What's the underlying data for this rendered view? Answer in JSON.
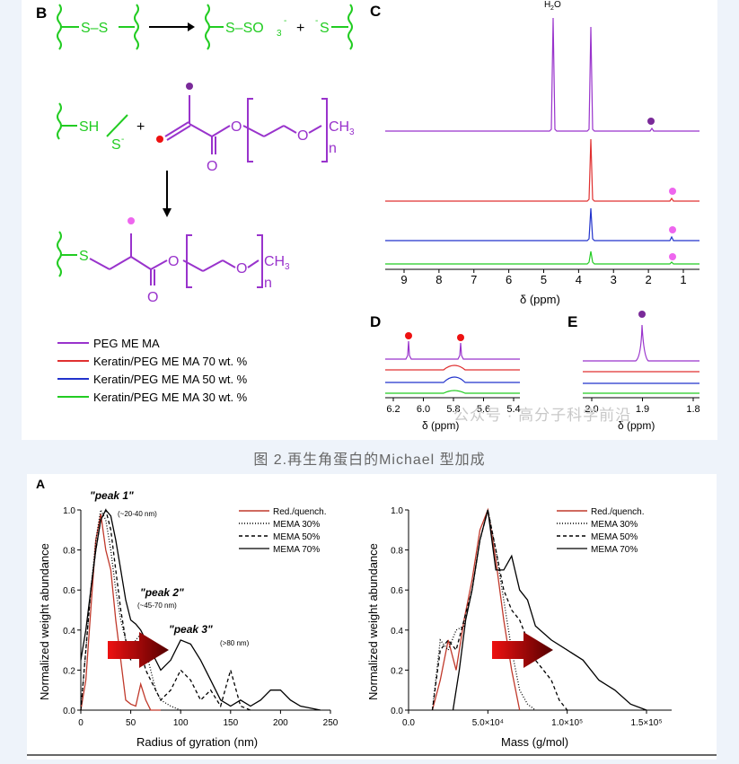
{
  "figure_top": {
    "panel_B": {
      "letter": "B",
      "legend": [
        {
          "label": "PEG ME MA",
          "color": "#9933cc"
        },
        {
          "label": "Keratin/PEG ME MA 70 wt. %",
          "color": "#e03030"
        },
        {
          "label": "Keratin/PEG ME MA 50 wt. %",
          "color": "#2233cc"
        },
        {
          "label": "Keratin/PEG ME MA 30 wt. %",
          "color": "#22cc22"
        }
      ],
      "chem": {
        "ss": "S–S",
        "arrow_top": "→",
        "sulfonate": "S–SO",
        "sub3": "3",
        "sup_minus": "-",
        "plus": "+",
        "thiolate": "S",
        "sh": "SH",
        "s_minus": "S",
        "o": "O",
        "ch3": "CH",
        "sub_3": "3",
        "n": "n",
        "s": "S"
      }
    },
    "panel_C": {
      "letter": "C",
      "water_label": "H",
      "water_sub": "2",
      "water_o": "O",
      "x_ticks": [
        "9",
        "8",
        "7",
        "6",
        "5",
        "4",
        "3",
        "2",
        "1"
      ],
      "x_label": "δ (ppm)",
      "colors": [
        "#9933cc",
        "#e03030",
        "#2233cc",
        "#22cc22"
      ]
    },
    "panel_D": {
      "letter": "D",
      "x_ticks": [
        "6.2",
        "6.0",
        "5.8",
        "5.6",
        "5.4"
      ],
      "x_label": "δ (ppm)"
    },
    "panel_E": {
      "letter": "E",
      "x_ticks": [
        "2.0",
        "1.9",
        "1.8"
      ],
      "x_label": "δ (ppm)"
    }
  },
  "watermark": "公众号 · 高分子科学前沿",
  "caption": "图 2.再生角蛋白的Michael 型加成",
  "figure_bottom": {
    "letter": "A",
    "left_chart": {
      "ylabel": "Normalized weight abundance",
      "xlabel": "Radius of gyration (nm)",
      "x_ticks": [
        "0",
        "50",
        "100",
        "150",
        "200",
        "250"
      ],
      "y_ticks": [
        "0.0",
        "0.2",
        "0.4",
        "0.6",
        "0.8",
        "1.0"
      ],
      "annotations": [
        {
          "text": "\"peak 1\"",
          "sub": "(~20-40 nm)"
        },
        {
          "text": "\"peak 2\"",
          "sub": "(~45-70 nm)"
        },
        {
          "text": "\"peak 3\"",
          "sub": "(>80 nm)"
        }
      ]
    },
    "right_chart": {
      "ylabel": "Normalized weight abundance",
      "xlabel": "Mass (g/mol)",
      "x_ticks": [
        "0.0",
        "5.0×10⁴",
        "1.0×10⁵",
        "1.5×10⁵"
      ],
      "y_ticks": [
        "0.0",
        "0.2",
        "0.4",
        "0.6",
        "0.8",
        "1.0"
      ]
    },
    "legend": [
      "Red./quench.",
      "MEMA 30%",
      "MEMA 50%",
      "MEMA 70%"
    ]
  },
  "chart_data": [
    {
      "type": "line",
      "title": "",
      "xlabel": "Radius of gyration (nm)",
      "ylabel": "Normalized weight abundance",
      "xlim": [
        0,
        250
      ],
      "ylim": [
        0,
        1.0
      ],
      "series": [
        {
          "name": "Red./quench.",
          "x": [
            0,
            5,
            10,
            15,
            20,
            25,
            30,
            35,
            40,
            45,
            50,
            55,
            60,
            65,
            70,
            80
          ],
          "y": [
            0,
            0.15,
            0.5,
            0.85,
            0.98,
            0.8,
            0.7,
            0.45,
            0.25,
            0.05,
            0.03,
            0.02,
            0.13,
            0.05,
            0,
            0
          ]
        },
        {
          "name": "MEMA 30%",
          "x": [
            0,
            5,
            10,
            15,
            20,
            25,
            30,
            35,
            40,
            45,
            50,
            55,
            60,
            65,
            70,
            75,
            80,
            90,
            100
          ],
          "y": [
            0,
            0.3,
            0.6,
            0.85,
            1.0,
            0.95,
            0.8,
            0.6,
            0.45,
            0.35,
            0.3,
            0.35,
            0.38,
            0.3,
            0.2,
            0.1,
            0.05,
            0.02,
            0
          ]
        },
        {
          "name": "MEMA 50%",
          "x": [
            0,
            5,
            10,
            15,
            20,
            25,
            30,
            35,
            40,
            45,
            50,
            55,
            60,
            65,
            70,
            80,
            90,
            100,
            110,
            120,
            130,
            140,
            150,
            160,
            170
          ],
          "y": [
            0,
            0.3,
            0.6,
            0.8,
            0.95,
            1.0,
            0.9,
            0.7,
            0.5,
            0.35,
            0.25,
            0.35,
            0.3,
            0.2,
            0.15,
            0.05,
            0.1,
            0.2,
            0.15,
            0.05,
            0.1,
            0.02,
            0.2,
            0.02,
            0
          ]
        },
        {
          "name": "MEMA 70%",
          "x": [
            0,
            5,
            10,
            15,
            20,
            25,
            30,
            35,
            40,
            45,
            50,
            55,
            60,
            65,
            70,
            80,
            90,
            100,
            110,
            120,
            130,
            140,
            150,
            160,
            170,
            180,
            190,
            200,
            210,
            220,
            230,
            240
          ],
          "y": [
            0.25,
            0.4,
            0.6,
            0.8,
            0.95,
            1.0,
            0.97,
            0.85,
            0.7,
            0.55,
            0.45,
            0.43,
            0.4,
            0.35,
            0.3,
            0.2,
            0.25,
            0.35,
            0.33,
            0.25,
            0.15,
            0.05,
            0.02,
            0.05,
            0.02,
            0.05,
            0.1,
            0.1,
            0.05,
            0.02,
            0.01,
            0
          ]
        }
      ]
    },
    {
      "type": "line",
      "title": "",
      "xlabel": "Mass (g/mol)",
      "ylabel": "Normalized weight abundance",
      "xlim": [
        0,
        150000
      ],
      "ylim": [
        0,
        1.0
      ],
      "series": [
        {
          "name": "Red./quench.",
          "x": [
            15000,
            20000,
            25000,
            30000,
            35000,
            40000,
            45000,
            50000,
            55000,
            60000,
            65000,
            70000
          ],
          "y": [
            0,
            0.15,
            0.35,
            0.2,
            0.45,
            0.65,
            0.9,
            1.0,
            0.75,
            0.45,
            0.2,
            0
          ]
        },
        {
          "name": "MEMA 30%",
          "x": [
            15000,
            20000,
            25000,
            30000,
            35000,
            40000,
            45000,
            50000,
            55000,
            60000,
            65000,
            70000,
            75000,
            80000
          ],
          "y": [
            0,
            0.35,
            0.3,
            0.4,
            0.42,
            0.6,
            0.85,
            1.0,
            0.8,
            0.55,
            0.3,
            0.1,
            0.03,
            0
          ]
        },
        {
          "name": "MEMA 50%",
          "x": [
            15000,
            20000,
            25000,
            30000,
            35000,
            40000,
            45000,
            50000,
            55000,
            60000,
            65000,
            70000,
            75000,
            80000,
            85000,
            90000,
            95000,
            100000
          ],
          "y": [
            0,
            0.3,
            0.35,
            0.3,
            0.45,
            0.6,
            0.85,
            1.0,
            0.8,
            0.6,
            0.5,
            0.45,
            0.35,
            0.25,
            0.2,
            0.15,
            0.05,
            0
          ]
        },
        {
          "name": "MEMA 70%",
          "x": [
            28000,
            32000,
            36000,
            40000,
            45000,
            50000,
            55000,
            60000,
            65000,
            70000,
            75000,
            80000,
            90000,
            100000,
            110000,
            120000,
            130000,
            140000,
            150000
          ],
          "y": [
            0,
            0.2,
            0.45,
            0.6,
            0.85,
            1.0,
            0.7,
            0.7,
            0.77,
            0.6,
            0.55,
            0.42,
            0.35,
            0.3,
            0.25,
            0.15,
            0.1,
            0.03,
            0
          ]
        }
      ]
    }
  ]
}
